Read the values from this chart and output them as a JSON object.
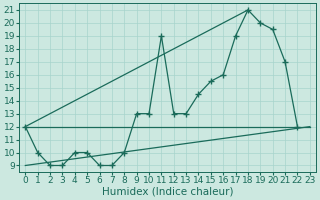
{
  "xlabel": "Humidex (Indice chaleur)",
  "bg_color": "#cce8e0",
  "line_color": "#1a6b5a",
  "xlim": [
    -0.5,
    23.5
  ],
  "ylim": [
    8.5,
    21.5
  ],
  "yticks": [
    9,
    10,
    11,
    12,
    13,
    14,
    15,
    16,
    17,
    18,
    19,
    20,
    21
  ],
  "xticks": [
    0,
    1,
    2,
    3,
    4,
    5,
    6,
    7,
    8,
    9,
    10,
    11,
    12,
    13,
    14,
    15,
    16,
    17,
    18,
    19,
    20,
    21,
    22,
    23
  ],
  "series1_x": [
    0,
    1,
    2,
    3,
    4,
    5,
    6,
    7,
    8,
    9,
    10,
    11,
    12,
    13,
    14,
    15,
    16,
    17,
    18,
    19,
    20,
    21,
    22
  ],
  "series1_y": [
    12,
    10,
    9,
    9,
    10,
    10,
    9,
    9,
    10,
    13,
    13,
    19,
    13,
    13,
    14.5,
    15.5,
    16,
    19,
    21,
    20,
    19.5,
    17,
    12
  ],
  "series2_x": [
    0,
    23
  ],
  "series2_y": [
    12,
    12
  ],
  "series3_x": [
    0,
    23
  ],
  "series3_y": [
    9,
    12
  ],
  "series4_x": [
    0,
    18
  ],
  "series4_y": [
    12,
    21
  ],
  "grid_color": "#a8d4cc",
  "tick_fontsize": 6.5,
  "xlabel_fontsize": 7.5
}
